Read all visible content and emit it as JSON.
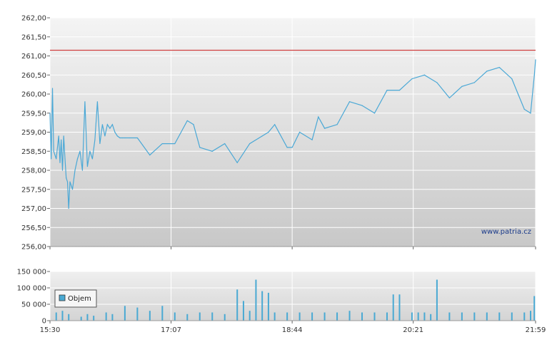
{
  "colors": {
    "price_line": "#4aa8d6",
    "volume_bar": "#49a9d3",
    "reference_line": "#d04040",
    "plot_bg_top": "#f4f4f4",
    "plot_bg_bottom": "#c8c8c8",
    "grid": "#ffffff",
    "axis": "#888888"
  },
  "watermark": "www.patria.cz",
  "legend": {
    "label": "Objem"
  },
  "chart_data": [
    {
      "type": "line",
      "name": "price",
      "x_ticks": [
        "15:30",
        "17:07",
        "18:44",
        "20:21",
        "21:59"
      ],
      "xlim": [
        "15:30",
        "21:59"
      ],
      "ylim": [
        256.0,
        262.0
      ],
      "y_ticks": [
        "256,00",
        "256,50",
        "257,00",
        "257,50",
        "258,00",
        "258,50",
        "259,00",
        "259,50",
        "260,00",
        "260,50",
        "261,00",
        "261,50",
        "262,00"
      ],
      "grid": true,
      "reference_line": 261.15,
      "series": [
        {
          "x": [
            "15:30",
            "15:31",
            "15:32",
            "15:33",
            "15:35",
            "15:37",
            "15:38",
            "15:39",
            "15:40",
            "15:41",
            "15:42",
            "15:43",
            "15:44",
            "15:45",
            "15:46",
            "15:48",
            "15:50",
            "15:52",
            "15:54",
            "15:56",
            "15:58",
            "16:00",
            "16:02",
            "16:04",
            "16:06",
            "16:08",
            "16:10",
            "16:12",
            "16:14",
            "16:16",
            "16:18",
            "16:20",
            "16:22",
            "16:24",
            "16:26",
            "16:28",
            "16:30",
            "16:34",
            "16:40",
            "16:50",
            "17:00",
            "17:10",
            "17:20",
            "17:25",
            "17:30",
            "17:40",
            "17:50",
            "18:00",
            "18:10",
            "18:20",
            "18:25",
            "18:30",
            "18:40",
            "18:44",
            "18:50",
            "19:00",
            "19:05",
            "19:10",
            "19:20",
            "19:30",
            "19:40",
            "19:50",
            "20:00",
            "20:10",
            "20:20",
            "20:30",
            "20:40",
            "20:50",
            "21:00",
            "21:10",
            "21:20",
            "21:30",
            "21:40",
            "21:45",
            "21:50",
            "21:55",
            "21:58",
            "21:59"
          ],
          "values": [
            259.5,
            258.3,
            260.15,
            258.5,
            258.3,
            258.9,
            258.2,
            258.8,
            258.0,
            258.9,
            258.3,
            257.8,
            257.7,
            257.0,
            257.7,
            257.5,
            258.0,
            258.3,
            258.5,
            258.0,
            259.8,
            258.1,
            258.5,
            258.3,
            258.8,
            259.8,
            258.7,
            259.2,
            258.9,
            259.2,
            259.1,
            259.2,
            259.0,
            258.9,
            258.85,
            258.85,
            258.85,
            258.85,
            258.85,
            258.4,
            258.7,
            258.7,
            259.3,
            259.2,
            258.6,
            258.5,
            258.7,
            258.2,
            258.7,
            258.9,
            259.0,
            259.2,
            258.6,
            258.6,
            259.0,
            258.8,
            259.4,
            259.1,
            259.2,
            259.8,
            259.7,
            259.5,
            260.1,
            260.1,
            260.4,
            260.5,
            260.3,
            259.9,
            260.2,
            260.3,
            260.6,
            260.7,
            260.4,
            260.0,
            259.6,
            259.5,
            260.5,
            260.9
          ]
        }
      ]
    },
    {
      "type": "bar",
      "name": "volume",
      "x_ticks": [
        "15:30",
        "17:07",
        "18:44",
        "20:21",
        "21:59"
      ],
      "ylim": [
        0,
        150000
      ],
      "y_ticks": [
        "0",
        "50 000",
        "100 000",
        "150 000"
      ],
      "legend": [
        "Objem"
      ],
      "legend_position": "bottom-left",
      "series": [
        {
          "name": "Objem",
          "x": [
            "15:35",
            "15:40",
            "15:45",
            "15:55",
            "16:00",
            "16:05",
            "16:15",
            "16:20",
            "16:30",
            "16:40",
            "16:50",
            "17:00",
            "17:10",
            "17:20",
            "17:30",
            "17:40",
            "17:50",
            "18:00",
            "18:05",
            "18:10",
            "18:15",
            "18:20",
            "18:25",
            "18:30",
            "18:40",
            "18:50",
            "19:00",
            "19:10",
            "19:20",
            "19:30",
            "19:40",
            "19:50",
            "20:00",
            "20:05",
            "20:10",
            "20:20",
            "20:25",
            "20:30",
            "20:35",
            "20:40",
            "20:50",
            "21:00",
            "21:10",
            "21:20",
            "21:30",
            "21:40",
            "21:50",
            "21:55",
            "21:58"
          ],
          "values": [
            25000,
            30000,
            20000,
            12000,
            20000,
            15000,
            25000,
            20000,
            45000,
            40000,
            30000,
            45000,
            25000,
            20000,
            25000,
            25000,
            20000,
            95000,
            60000,
            30000,
            125000,
            90000,
            85000,
            25000,
            25000,
            25000,
            25000,
            25000,
            25000,
            30000,
            25000,
            25000,
            25000,
            80000,
            80000,
            25000,
            25000,
            25000,
            20000,
            125000,
            25000,
            25000,
            25000,
            25000,
            25000,
            25000,
            25000,
            30000,
            75000
          ]
        }
      ]
    }
  ]
}
